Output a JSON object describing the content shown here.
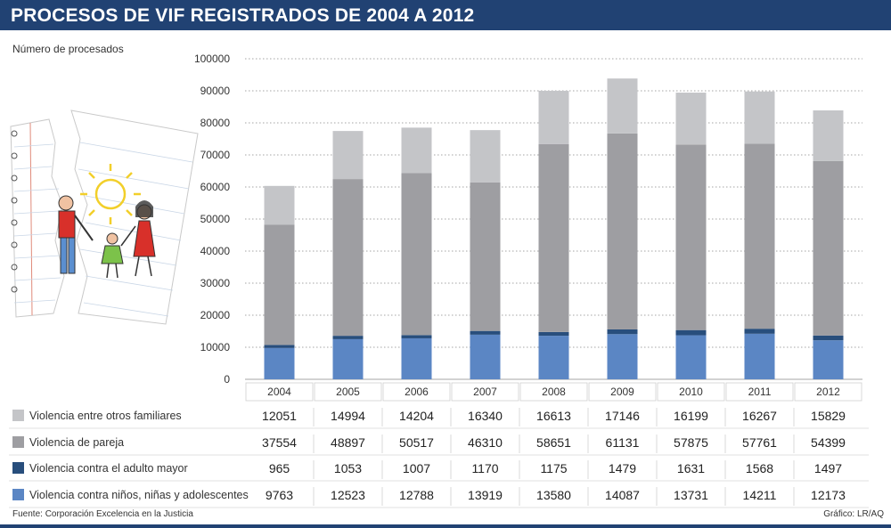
{
  "title": "PROCESOS DE VIF REGISTRADOS DE 2004 A 2012",
  "source": "Fuente:  Corporación Excelencia en la Justicia",
  "credit": "Gráfico: LR/AQ",
  "colors": {
    "header": "#214273",
    "others": "#c4c5c8",
    "pareja": "#9e9ea2",
    "adulto": "#284e7c",
    "ninos": "#5b86c4",
    "grid": "#888888"
  },
  "chart_data": {
    "type": "bar",
    "stacked": true,
    "title": "PROCESOS DE VIF REGISTRADOS DE 2004 A 2012",
    "ylabel": "Número de procesados",
    "xlabel": "",
    "ylim": [
      0,
      100000
    ],
    "yticks": [
      "0",
      "10000",
      "20000",
      "30000",
      "40000",
      "50000",
      "60000",
      "70000",
      "80000",
      "90000",
      "100000"
    ],
    "categories": [
      "2004",
      "2005",
      "2006",
      "2007",
      "2008",
      "2009",
      "2010",
      "2011",
      "2012"
    ],
    "series": [
      {
        "name": "Violencia contra niños, niñas y adolescentes",
        "color_key": "ninos",
        "values": [
          9763,
          12523,
          12788,
          13919,
          13580,
          14087,
          13731,
          14211,
          12173
        ]
      },
      {
        "name": "Violencia contra el adulto mayor",
        "color_key": "adulto",
        "values": [
          965,
          1053,
          1007,
          1170,
          1175,
          1479,
          1631,
          1568,
          1497
        ]
      },
      {
        "name": "Violencia de pareja",
        "color_key": "pareja",
        "values": [
          37554,
          48897,
          50517,
          46310,
          58651,
          61131,
          57875,
          57761,
          54399
        ]
      },
      {
        "name": "Violencia entre otros familiares",
        "color_key": "others",
        "values": [
          12051,
          14994,
          14204,
          16340,
          16613,
          17146,
          16199,
          16267,
          15829
        ]
      }
    ],
    "table_order": [
      3,
      2,
      1,
      0
    ]
  }
}
